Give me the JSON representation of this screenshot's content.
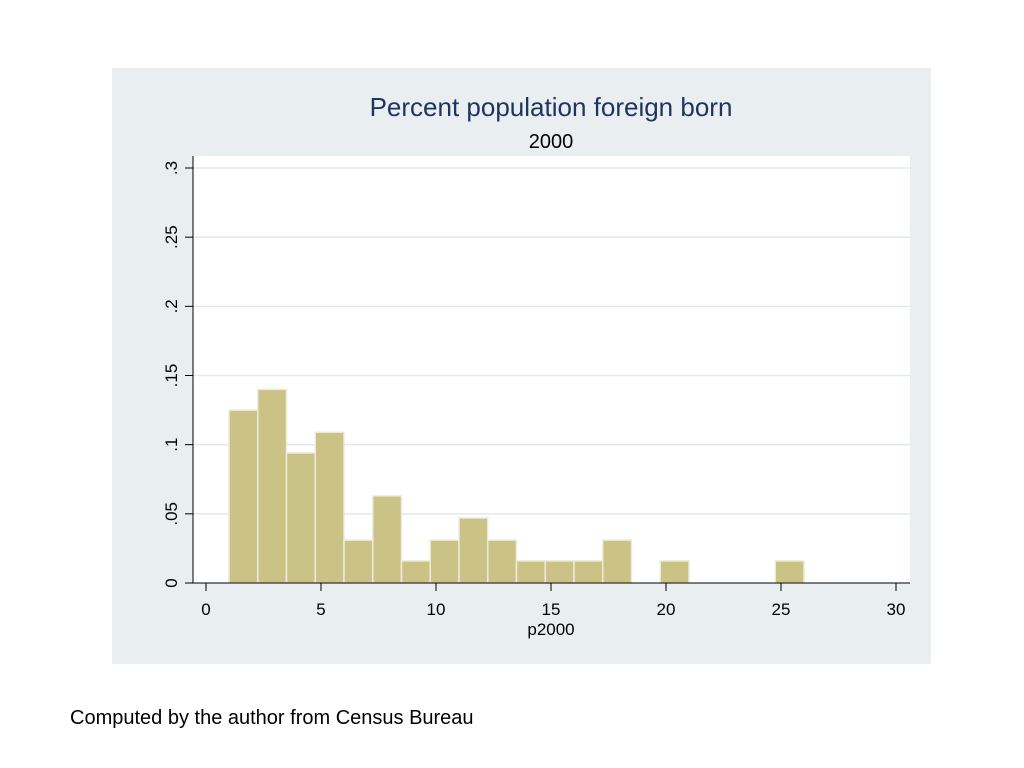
{
  "chart_data": {
    "type": "bar",
    "title": "Percent population foreign born",
    "subtitle": "2000",
    "xlabel": "p2000",
    "ylabel": "",
    "xlim": [
      0,
      30
    ],
    "ylim": [
      0,
      0.3
    ],
    "xticks": [
      0,
      5,
      10,
      15,
      20,
      25,
      30
    ],
    "xtick_labels": [
      "0",
      "5",
      "10",
      "15",
      "20",
      "25",
      "30"
    ],
    "yticks": [
      0,
      0.05,
      0.1,
      0.15,
      0.2,
      0.25,
      0.3
    ],
    "ytick_labels": [
      "0",
      ".05",
      ".1",
      ".15",
      ".2",
      ".25",
      ".3"
    ],
    "grid": true,
    "bar_color": "#cbc286",
    "bars": [
      {
        "x0": 1.0,
        "x1": 2.25,
        "density": 0.125
      },
      {
        "x0": 2.25,
        "x1": 3.5,
        "density": 0.14
      },
      {
        "x0": 3.5,
        "x1": 4.75,
        "density": 0.094
      },
      {
        "x0": 4.75,
        "x1": 6.0,
        "density": 0.109
      },
      {
        "x0": 6.0,
        "x1": 7.25,
        "density": 0.031
      },
      {
        "x0": 7.25,
        "x1": 8.5,
        "density": 0.063
      },
      {
        "x0": 8.5,
        "x1": 9.75,
        "density": 0.016
      },
      {
        "x0": 9.75,
        "x1": 11.0,
        "density": 0.031
      },
      {
        "x0": 11.0,
        "x1": 12.25,
        "density": 0.047
      },
      {
        "x0": 12.25,
        "x1": 13.5,
        "density": 0.031
      },
      {
        "x0": 13.5,
        "x1": 14.75,
        "density": 0.016
      },
      {
        "x0": 14.75,
        "x1": 16.0,
        "density": 0.016
      },
      {
        "x0": 16.0,
        "x1": 17.25,
        "density": 0.016
      },
      {
        "x0": 17.25,
        "x1": 18.5,
        "density": 0.031
      },
      {
        "x0": 19.75,
        "x1": 21.0,
        "density": 0.016
      },
      {
        "x0": 24.75,
        "x1": 26.0,
        "density": 0.016
      }
    ]
  },
  "caption": "Computed by the author from Census Bureau"
}
